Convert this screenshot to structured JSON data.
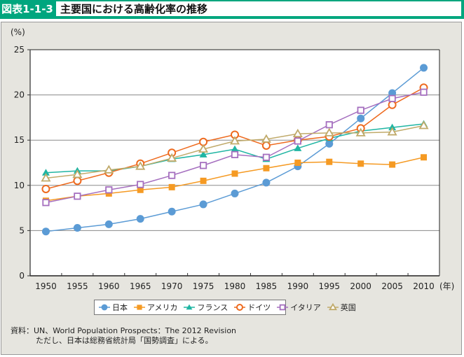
{
  "header": {
    "figure_label": "図表1-1-3",
    "title": "主要国における高齢化率の推移"
  },
  "chart_data": {
    "type": "line",
    "title": "主要国における高齢化率の推移",
    "ylabel": "(%)",
    "xlabel": "(年)",
    "ylim": [
      0,
      25
    ],
    "yticks": [
      0,
      5,
      10,
      15,
      20,
      25
    ],
    "grid": "horizontal",
    "legend_position": "bottom",
    "categories": [
      "1950",
      "1955",
      "1960",
      "1965",
      "1970",
      "1975",
      "1980",
      "1985",
      "1990",
      "1995",
      "2000",
      "2005",
      "2010"
    ],
    "series": [
      {
        "name": "日本",
        "color": "#5b9bd5",
        "marker": "circle-filled",
        "values": [
          4.9,
          5.3,
          5.7,
          6.3,
          7.1,
          7.9,
          9.1,
          10.3,
          12.1,
          14.6,
          17.4,
          20.2,
          23.0
        ]
      },
      {
        "name": "アメリカ",
        "color": "#f59a23",
        "marker": "square-filled",
        "values": [
          8.3,
          8.8,
          9.1,
          9.5,
          9.8,
          10.5,
          11.3,
          11.9,
          12.5,
          12.6,
          12.4,
          12.3,
          13.1
        ]
      },
      {
        "name": "フランス",
        "color": "#1fb5a3",
        "marker": "triangle-filled",
        "values": [
          11.4,
          11.6,
          11.6,
          12.1,
          12.9,
          13.4,
          14.0,
          12.9,
          14.1,
          15.2,
          16.0,
          16.4,
          16.8
        ]
      },
      {
        "name": "ドイツ",
        "color": "#ee6a1e",
        "marker": "circle-open",
        "values": [
          9.6,
          10.5,
          11.4,
          12.4,
          13.6,
          14.8,
          15.6,
          14.4,
          15.0,
          15.4,
          16.3,
          18.9,
          20.8
        ]
      },
      {
        "name": "イタリア",
        "color": "#a56fbf",
        "marker": "square-open",
        "values": [
          8.1,
          8.8,
          9.5,
          10.1,
          11.1,
          12.2,
          13.4,
          13.1,
          14.9,
          16.7,
          18.3,
          19.6,
          20.3
        ]
      },
      {
        "name": "英国",
        "color": "#c0aa6a",
        "marker": "triangle-open",
        "values": [
          10.8,
          11.2,
          11.7,
          12.1,
          13.0,
          14.0,
          14.9,
          15.1,
          15.7,
          15.8,
          15.8,
          15.9,
          16.6
        ]
      }
    ]
  },
  "source": {
    "line1": "資料：UN、World Population Prospects：The 2012 Revision",
    "line2": "ただし、日本は総務省統計局「国勢調査」による。"
  }
}
